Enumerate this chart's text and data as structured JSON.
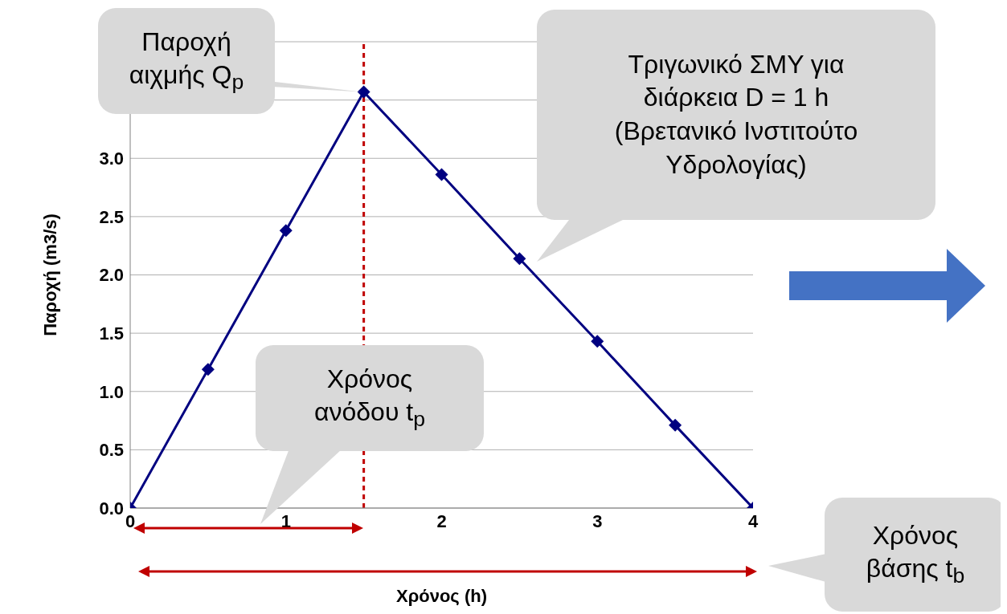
{
  "chart_data": {
    "type": "line",
    "xlabel": "Χρόνος (h)",
    "ylabel": "Παροχή (m3/s)",
    "x": [
      0,
      0.5,
      1,
      1.5,
      2,
      2.5,
      3,
      3.5,
      4
    ],
    "series": [
      {
        "color": "#000080",
        "values": [
          0,
          1.19,
          2.38,
          3.57,
          2.86,
          2.14,
          1.43,
          0.71,
          0
        ]
      }
    ],
    "xlim": [
      0,
      4
    ],
    "xticks": [
      0,
      1,
      2,
      3,
      4
    ],
    "ylim": [
      0,
      4
    ],
    "yticks": [
      {
        "value": 0,
        "label": "0.0"
      },
      0.5,
      {
        "value": 1,
        "label": "1.0"
      },
      1.5,
      {
        "value": 2,
        "label": "2.0"
      },
      2.5,
      {
        "value": 3,
        "label": "3.0"
      },
      {
        "value": 3.5,
        "label": null
      },
      {
        "value": 4,
        "label": null
      }
    ],
    "grid": "y",
    "marker": "diamond",
    "line_style": "solid",
    "ref_lines": [
      {
        "axis": "x",
        "value": 1.5,
        "color": "#c00000",
        "line_style": "dashed"
      }
    ],
    "annotations": [
      {
        "text": "Παροχή αιχμής Q$_{p}$",
        "x": 1.5,
        "y": 3.57
      },
      "Τριγωνικό ΣΜΥ για διάρκεια D = 1 h (Βρετανικό Ινστιτούτο Υδρολογίας)",
      "Χρόνος ανόδου t$_{p}$",
      "Χρόνος βάσης t$_{b}$"
    ]
  }
}
